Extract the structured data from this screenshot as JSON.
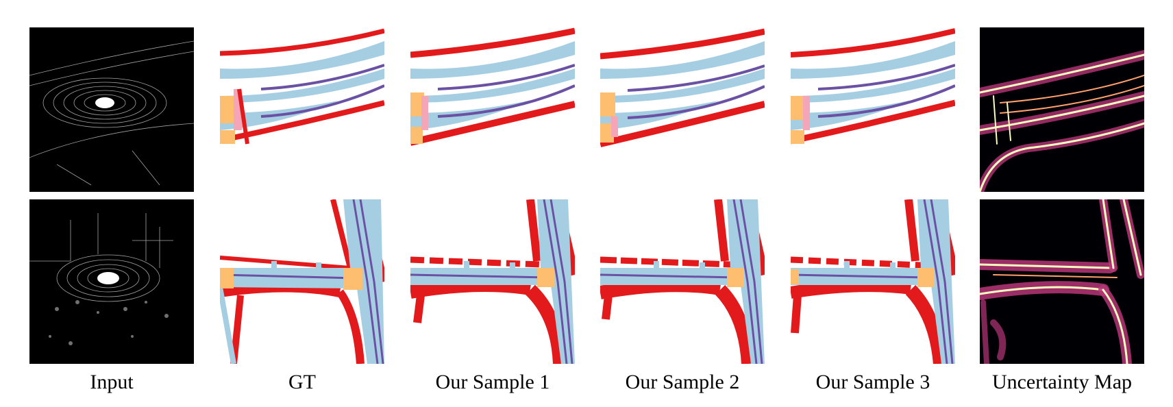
{
  "figure": {
    "captions": [
      "Input",
      "GT",
      "Our Sample 1",
      "Our Sample 2",
      "Our Sample 3",
      "Uncertainty Map"
    ]
  },
  "colors": {
    "boundary": "#e31a1c",
    "road": "#a6cee3",
    "lane_divider": "#6a51a3",
    "crossing": "#fdbf6f",
    "pedestrian": "#f4a6b8",
    "uncertainty_bg": "#000004",
    "uncertainty_hot": "#fcfdbf"
  }
}
